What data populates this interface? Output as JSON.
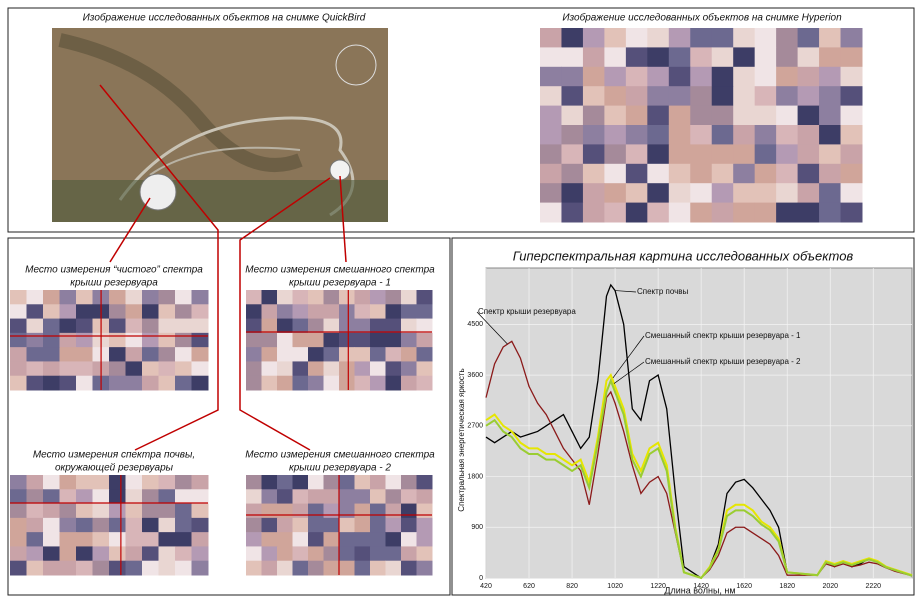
{
  "panels": {
    "quickbird_title": "Изображение исследованных объектов на снимке QuickBird",
    "hyperion_title": "Изображение исследованных объектов на снимке Hyperion",
    "captions": [
      [
        "Место измерения “чистого” спектра",
        "крыши резервуара"
      ],
      [
        "Место измерения смешанного спектра",
        "крыши резервуара - 1"
      ],
      [
        "Место измерения спектра почвы,",
        "окружающей резервуары"
      ],
      [
        "Место измерения смешанного спектра",
        "крыши резервуара - 2"
      ]
    ]
  },
  "chart_data": {
    "type": "line",
    "title": "Гиперспектральная картина исследованных объектов",
    "x_label": "Длина волны, нм",
    "y_label": "Спектральная энергетическая яркость",
    "x": [
      420,
      460,
      500,
      540,
      580,
      620,
      660,
      700,
      740,
      780,
      820,
      860,
      900,
      940,
      980,
      1000,
      1020,
      1060,
      1100,
      1140,
      1180,
      1220,
      1260,
      1300,
      1340,
      1420,
      1460,
      1500,
      1540,
      1580,
      1620,
      1660,
      1700,
      1740,
      1780,
      1820,
      1960,
      2000,
      2040,
      2080,
      2120,
      2160,
      2200,
      2240,
      2280,
      2320,
      2360,
      2400
    ],
    "series": [
      {
        "name": "Спектр почвы",
        "color": "#000000",
        "values": [
          2500,
          2400,
          2500,
          2600,
          2500,
          2550,
          2600,
          2700,
          2800,
          2900,
          2600,
          2300,
          2500,
          3500,
          5000,
          5200,
          5100,
          4500,
          3000,
          2800,
          3500,
          3600,
          3000,
          1500,
          200,
          0,
          200,
          600,
          1500,
          1700,
          1750,
          1600,
          1400,
          1200,
          900,
          100,
          50,
          300,
          200,
          300,
          200,
          250,
          350,
          300,
          200,
          150,
          100,
          50
        ]
      },
      {
        "name": "Спектр крыши резервуара",
        "color": "#8b1a1a",
        "values": [
          3200,
          3800,
          4100,
          4200,
          3900,
          3400,
          3100,
          2900,
          2600,
          2300,
          2100,
          1900,
          1300,
          2200,
          3200,
          3300,
          3100,
          2600,
          2000,
          1500,
          1700,
          1800,
          1500,
          800,
          100,
          0,
          150,
          400,
          800,
          900,
          900,
          800,
          700,
          600,
          400,
          50,
          50,
          250,
          200,
          250,
          200,
          230,
          280,
          250,
          180,
          120,
          80,
          40
        ]
      },
      {
        "name": "Смешанный спектр крыши резервуара - 1",
        "color": "#e6e600",
        "values": [
          2800,
          2900,
          2700,
          2600,
          2400,
          2300,
          2300,
          2200,
          2200,
          2100,
          2000,
          2100,
          1700,
          2500,
          3500,
          3600,
          3400,
          3000,
          2200,
          1900,
          2300,
          2400,
          2000,
          900,
          100,
          0,
          200,
          500,
          1200,
          1300,
          1300,
          1200,
          1000,
          900,
          700,
          100,
          50,
          300,
          250,
          300,
          250,
          300,
          350,
          300,
          200,
          150,
          100,
          50
        ]
      },
      {
        "name": "Смешанный спектр крыши резервуара - 2",
        "color": "#9acd32",
        "values": [
          2700,
          2800,
          2600,
          2500,
          2300,
          2200,
          2200,
          2100,
          2100,
          2000,
          1900,
          2000,
          1600,
          2400,
          3300,
          3500,
          3300,
          2900,
          2100,
          1800,
          2200,
          2300,
          1900,
          850,
          100,
          0,
          180,
          480,
          1100,
          1200,
          1200,
          1100,
          950,
          850,
          650,
          100,
          50,
          280,
          230,
          280,
          230,
          280,
          330,
          280,
          190,
          140,
          90,
          40
        ]
      }
    ],
    "xlim": [
      420,
      2400
    ],
    "ylim": [
      0,
      5500
    ],
    "xticks": [
      420,
      620,
      820,
      1020,
      1220,
      1420,
      1620,
      1820,
      2020,
      2220
    ],
    "yticks": [
      0,
      900,
      1800,
      2700,
      3600,
      4500
    ],
    "grid": true
  }
}
